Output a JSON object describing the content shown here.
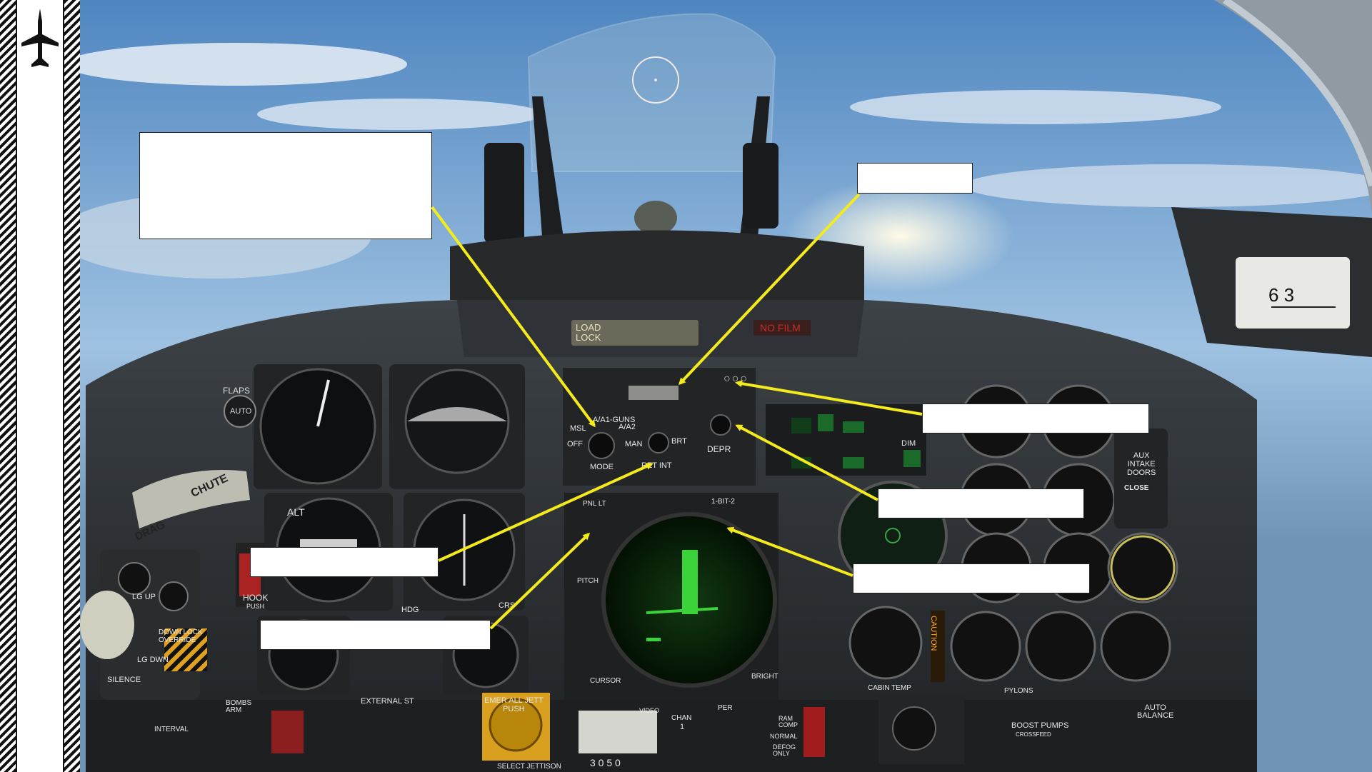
{
  "labels": {
    "load_lock": "LOAD\nLOCK",
    "no_film": "NO FILM",
    "flaps": "FLAPS",
    "auto": "AUTO",
    "chute": "CHUTE",
    "drag": "DRAG",
    "lg_up": "LG UP",
    "lg_dwn": "LG DWN",
    "down_lock_override": "DOWN LOCK\nOVERRIDE",
    "silence": "SILENCE",
    "hook": "HOOK",
    "push": "PUSH",
    "msl": "MSL",
    "off": "OFF",
    "a1_guns": "A/A1-GUNS",
    "a2": "A/A2",
    "man": "MAN",
    "brt": "BRT",
    "mode": "MODE",
    "ret_int": "RET INT",
    "depr": "DEPR",
    "dim": "DIM",
    "pnl_lt": "PNL LT",
    "bit": "1-BIT-2",
    "pitch": "PITCH",
    "cursor": "CURSOR",
    "bright": "BRIGHT",
    "aux_intake_doors": "AUX\nINTAKE\nDOORS",
    "close": "CLOSE",
    "caution": "CAUTION",
    "emer_all_jett": "EMER ALL JETT\nPUSH",
    "select_jettison": "SELECT JETTISON",
    "external_stores": "EXTERNAL ST",
    "pylons": "PYLONS",
    "boost_pumps": "BOOST PUMPS",
    "crossfeed": "CROSSFEED",
    "auto_balance": "AUTO\nBALANCE",
    "cabin_temp": "CABIN TEMP",
    "hdg": "HDG",
    "crs": "CRS",
    "alt": "ALT",
    "interval": "INTERVAL",
    "bombs_arm": "BOMBS\nARM",
    "video": "VIDEO",
    "chan": "CHAN",
    "per": "PER",
    "ram_comp": "RAM\nCOMP",
    "normal": "NORMAL",
    "defog_only": "DEFOG\nONLY",
    "lights_ooo": "○○○",
    "clock_digits": "6 3",
    "chan_value": "1",
    "bottom_digits": "3  0  5  0"
  }
}
